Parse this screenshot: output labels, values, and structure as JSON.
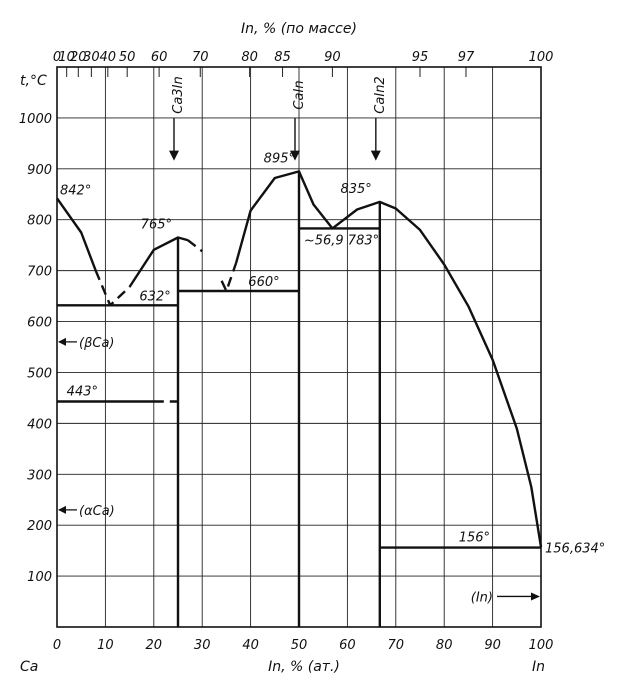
{
  "chart_data": {
    "type": "line",
    "x_axis": {
      "label": "In, % (ат.)",
      "range": [
        0,
        100
      ],
      "ticks": [
        "0",
        "10",
        "20",
        "30",
        "40",
        "50",
        "60",
        "70",
        "80",
        "90",
        "100"
      ],
      "tick_values": [
        0,
        10,
        20,
        30,
        40,
        50,
        60,
        70,
        80,
        90,
        100
      ]
    },
    "x2_axis": {
      "label": "In, % (по массе)",
      "ticks": [
        "0",
        "10",
        "20",
        "30",
        "40",
        "50",
        "60",
        "70",
        "80",
        "85",
        "90",
        "95",
        "97",
        "100"
      ],
      "tick_positions_at": [
        0,
        2.0,
        4.4,
        7.1,
        10.5,
        14.5,
        21.1,
        29.6,
        39.8,
        46.6,
        56.9,
        75.0,
        84.5,
        100
      ]
    },
    "y_axis": {
      "label": "t,°C",
      "range": [
        0,
        1100
      ],
      "ticks": [
        "100",
        "200",
        "300",
        "400",
        "500",
        "600",
        "700",
        "800",
        "900",
        "1000"
      ],
      "tick_values": [
        100,
        200,
        300,
        400,
        500,
        600,
        700,
        800,
        900,
        1000
      ]
    },
    "grid": true,
    "corner_labels": {
      "left": "Ca",
      "right": "In"
    },
    "compounds": [
      {
        "label": "Ca3In",
        "x": 25
      },
      {
        "label": "CaIn",
        "x": 50
      },
      {
        "label": "CaIn2",
        "x": 66.7
      }
    ],
    "annotations": [
      {
        "text": "842°",
        "x": 0,
        "y": 842
      },
      {
        "text": "765°",
        "x": 25,
        "y": 765
      },
      {
        "text": "895°",
        "x": 50,
        "y": 895
      },
      {
        "text": "835°",
        "x": 66.7,
        "y": 835
      },
      {
        "text": "632°",
        "x": 11,
        "y": 632
      },
      {
        "text": "660°",
        "x": 35,
        "y": 660
      },
      {
        "text": "~56,9 783°",
        "x": 56.9,
        "y": 783
      },
      {
        "text": "443°",
        "x": 0,
        "y": 443
      },
      {
        "text": "156°",
        "x": 70,
        "y": 156
      },
      {
        "text": "156,634°",
        "x": 100,
        "y": 156.6
      }
    ],
    "phase_labels": [
      {
        "text": "(βCa)",
        "x": 0,
        "y": 560
      },
      {
        "text": "(αCa)",
        "x": 0,
        "y": 230
      },
      {
        "text": "(In)",
        "x": 100,
        "y": 60
      }
    ],
    "series": [
      {
        "style": "solid",
        "points": [
          [
            0,
            842
          ],
          [
            5,
            775
          ],
          [
            8,
            700
          ]
        ]
      },
      {
        "style": "dashed",
        "points": [
          [
            8,
            700
          ],
          [
            11,
            632
          ],
          [
            15,
            668
          ]
        ]
      },
      {
        "style": "solid",
        "points": [
          [
            15,
            668
          ],
          [
            20,
            741
          ],
          [
            25,
            765
          ],
          [
            27,
            760
          ]
        ]
      },
      {
        "style": "dashed",
        "points": [
          [
            27,
            760
          ],
          [
            30,
            738
          ]
        ]
      },
      {
        "style": "dashed",
        "points": [
          [
            34,
            680
          ],
          [
            35,
            660
          ],
          [
            37,
            715
          ]
        ]
      },
      {
        "style": "solid",
        "points": [
          [
            37,
            715
          ],
          [
            40,
            818
          ],
          [
            45,
            882
          ],
          [
            50,
            895
          ],
          [
            53,
            830
          ],
          [
            56.9,
            783
          ],
          [
            62,
            820
          ],
          [
            66.7,
            835
          ],
          [
            70,
            822
          ],
          [
            75,
            780
          ],
          [
            80,
            712
          ],
          [
            85,
            630
          ],
          [
            90,
            525
          ],
          [
            95,
            390
          ],
          [
            98,
            275
          ],
          [
            100,
            157
          ]
        ]
      },
      {
        "style": "solid",
        "points": [
          [
            0,
            632
          ],
          [
            25,
            632
          ]
        ]
      },
      {
        "style": "solid",
        "points": [
          [
            0,
            443
          ],
          [
            20,
            443
          ]
        ]
      },
      {
        "style": "dashed",
        "points": [
          [
            20,
            443
          ],
          [
            25,
            443
          ]
        ]
      },
      {
        "style": "solid",
        "points": [
          [
            25,
            660
          ],
          [
            50,
            660
          ]
        ]
      },
      {
        "style": "solid",
        "points": [
          [
            50,
            783
          ],
          [
            66.7,
            783
          ]
        ]
      },
      {
        "style": "solid",
        "points": [
          [
            66.7,
            156
          ],
          [
            100,
            156
          ]
        ]
      },
      {
        "style": "solid",
        "points": [
          [
            25,
            0
          ],
          [
            25,
            765
          ]
        ]
      },
      {
        "style": "solid",
        "points": [
          [
            50,
            0
          ],
          [
            50,
            895
          ]
        ]
      },
      {
        "style": "solid",
        "points": [
          [
            66.7,
            0
          ],
          [
            66.7,
            835
          ]
        ]
      }
    ]
  }
}
